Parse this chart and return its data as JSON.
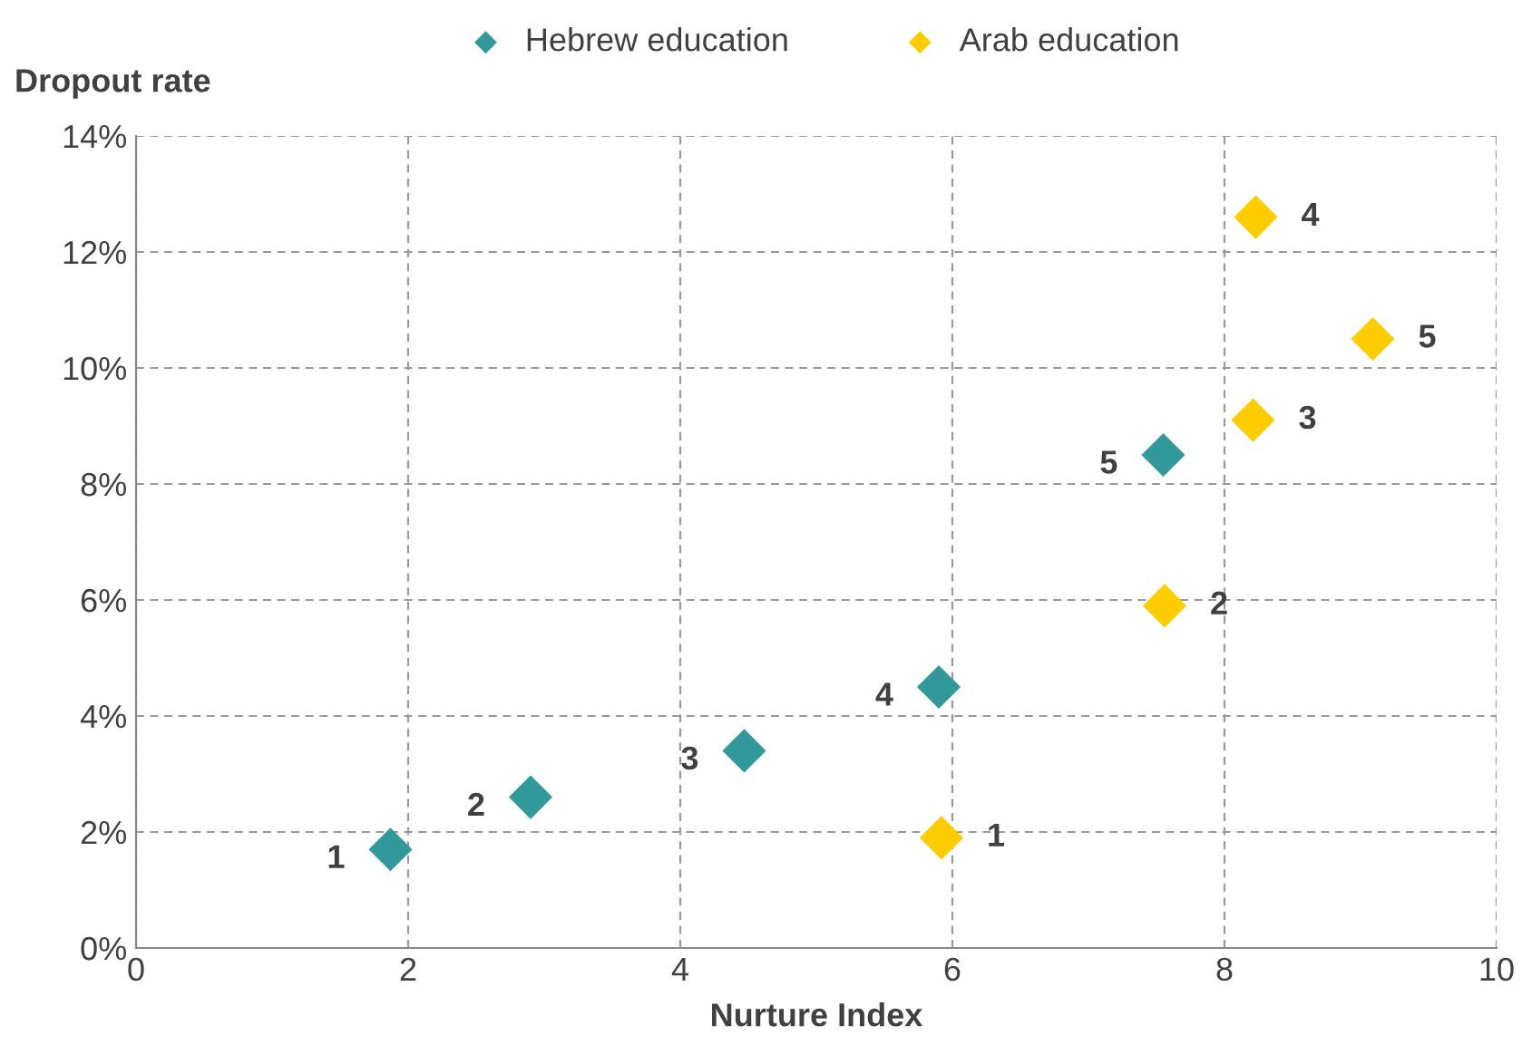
{
  "chart_data": {
    "type": "scatter",
    "xlabel": "Nurture Index",
    "ylabel": "Dropout rate",
    "series": [
      {
        "name": "Hebrew education",
        "color": "#31999a",
        "x": [
          1.87,
          2.9,
          4.47,
          5.9,
          7.55
        ],
        "values": [
          1.7,
          2.6,
          3.4,
          4.5,
          8.5
        ]
      },
      {
        "name": "Arab education",
        "color": "#ffcc00",
        "x": [
          5.92,
          7.56,
          8.21,
          8.23,
          9.09
        ],
        "values": [
          1.9,
          5.9,
          9.1,
          12.6,
          10.5
        ]
      }
    ],
    "annotations": [
      {
        "text": "1",
        "x": 1.87,
        "y": 1.7
      },
      {
        "text": "2",
        "x": 2.9,
        "y": 2.6
      },
      {
        "text": "3",
        "x": 4.47,
        "y": 3.4
      },
      {
        "text": "4",
        "x": 5.9,
        "y": 4.5
      },
      {
        "text": "5",
        "x": 7.55,
        "y": 8.5
      },
      {
        "text": "1",
        "x": 5.92,
        "y": 1.9
      },
      {
        "text": "2",
        "x": 7.56,
        "y": 5.9
      },
      {
        "text": "3",
        "x": 8.21,
        "y": 9.1
      },
      {
        "text": "4",
        "x": 8.23,
        "y": 12.6
      },
      {
        "text": "5",
        "x": 9.09,
        "y": 10.5
      }
    ],
    "xlim": [
      0,
      10
    ],
    "xticks": [
      0,
      2,
      4,
      6,
      8,
      10
    ],
    "ylim": [
      0,
      14
    ],
    "yticks": [
      {
        "value": 0,
        "label": "0%"
      },
      {
        "value": 2,
        "label": "2%"
      },
      {
        "value": 4,
        "label": "4%"
      },
      {
        "value": 6,
        "label": "6%"
      },
      {
        "value": 8,
        "label": "8%"
      },
      {
        "value": 10,
        "label": "10%"
      },
      {
        "value": 12,
        "label": "12%"
      },
      {
        "value": 14,
        "label": "14%"
      }
    ],
    "grid": true,
    "legend": "top",
    "marker": "diamond"
  }
}
